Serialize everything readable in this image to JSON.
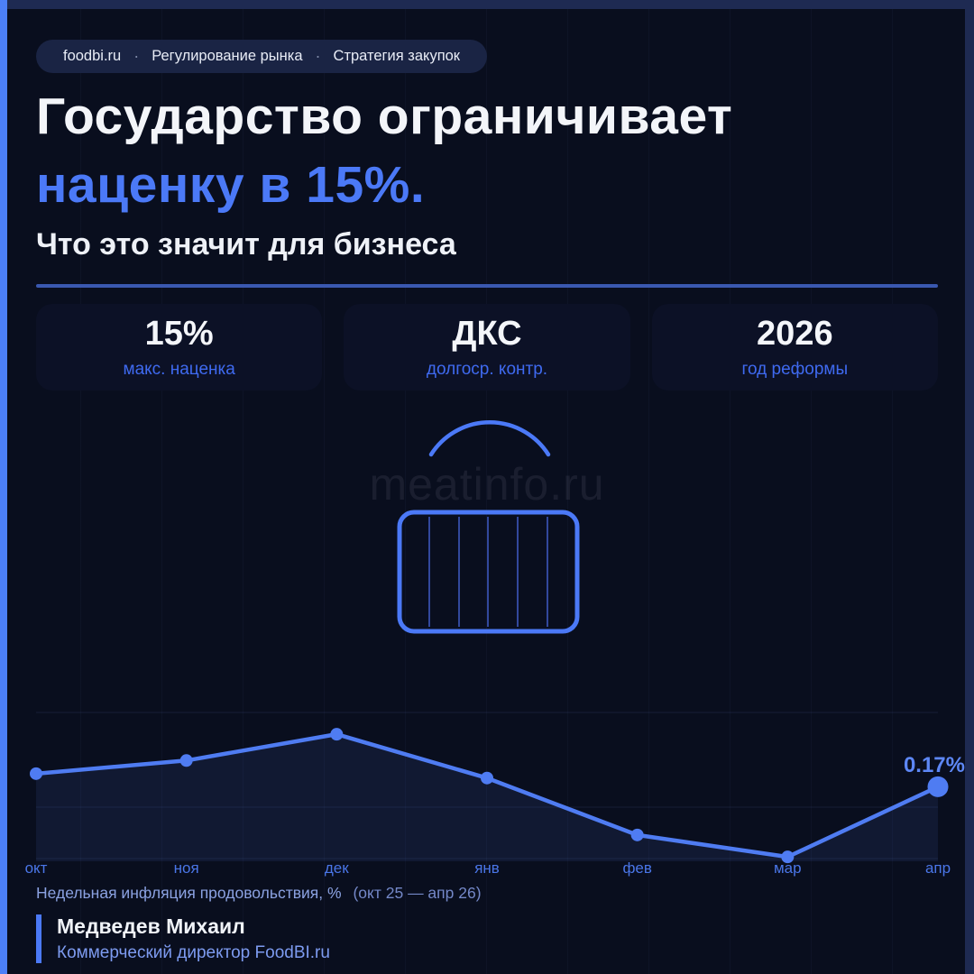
{
  "colors": {
    "accent": "#4b79f7",
    "line": "#4f7cf2",
    "background": "#090e1e",
    "frame_top": "#1e2a52",
    "frame_left_accent": "#4c80f8",
    "divider": "#3a58b0",
    "card_background": "#0c1126"
  },
  "breadcrumb": {
    "separator": "·",
    "items": [
      "foodbi.ru",
      "Регулирование рынка",
      "Стратегия закупок"
    ]
  },
  "header": {
    "title_line1": "Государство ограничивает",
    "title_line2": "наценку в 15%.",
    "subtitle": "Что это значит для бизнеса"
  },
  "stats": [
    {
      "value": "15%",
      "label": "макс. наценка"
    },
    {
      "value": "ДКС",
      "label": "долгоср. контр."
    },
    {
      "value": "2026",
      "label": "год реформы"
    }
  ],
  "watermark": "meatinfo.ru",
  "icon": "basket-icon",
  "chart_data": {
    "type": "area",
    "title": "Недельная инфляция продовольствия, %",
    "range_label": "(окт 25 — апр 26)",
    "categories": [
      "окт",
      "ноя",
      "дек",
      "янв",
      "фев",
      "мар",
      "апр"
    ],
    "values": [
      0.2,
      0.23,
      0.29,
      0.19,
      0.06,
      0.01,
      0.17
    ],
    "last_point_label": "0.17%",
    "ylim": [
      0,
      0.35
    ],
    "grid": true,
    "legend": "none",
    "line_color": "#4f7cf2"
  },
  "author": {
    "name": "Медведев Михаил",
    "role": "Коммерческий директор FoodBI.ru"
  }
}
